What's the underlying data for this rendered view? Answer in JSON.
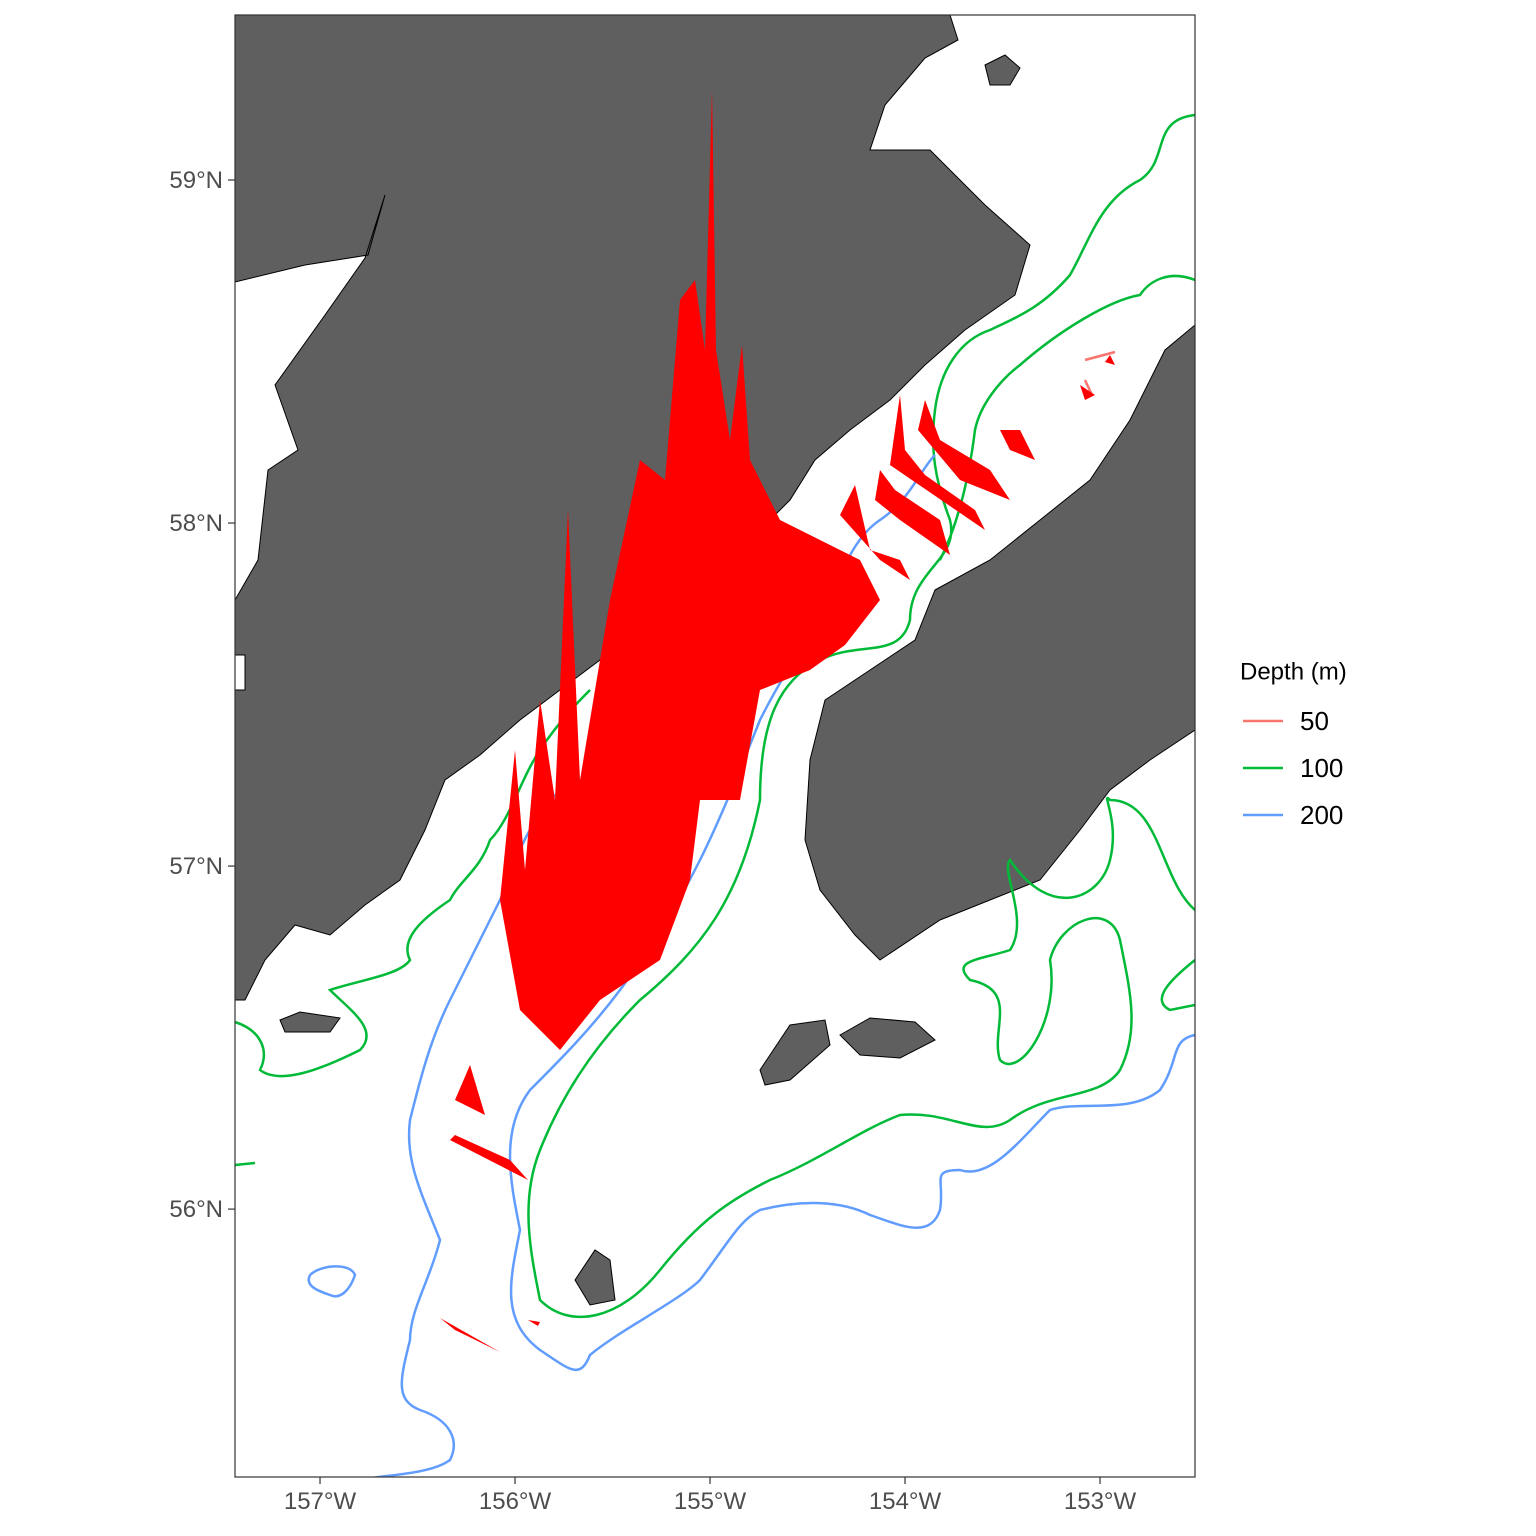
{
  "map": {
    "xlim": [
      -157.436,
      -152.513
    ],
    "ylim": [
      55.219,
      59.481
    ],
    "xticks": [
      {
        "value": -157,
        "label": "157°W"
      },
      {
        "value": -156,
        "label": "156°W"
      },
      {
        "value": -155,
        "label": "155°W"
      },
      {
        "value": -154,
        "label": "154°W"
      },
      {
        "value": -153,
        "label": "153°W"
      }
    ],
    "yticks": [
      {
        "value": 56,
        "label": "56°N"
      },
      {
        "value": 57,
        "label": "57°N"
      },
      {
        "value": 58,
        "label": "58°N"
      },
      {
        "value": 59,
        "label": "59°N"
      }
    ],
    "legend": {
      "title": "Depth (m)",
      "entries": [
        {
          "label": 50,
          "color": "#F8766D"
        },
        {
          "label": 100,
          "color": "#00BA38"
        },
        {
          "label": 200,
          "color": "#619CFF"
        }
      ]
    }
  }
}
